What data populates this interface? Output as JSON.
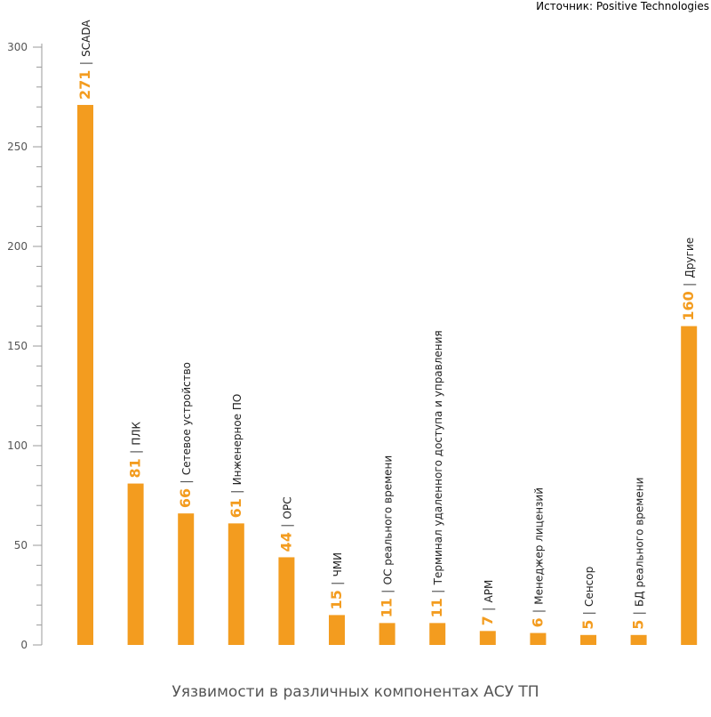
{
  "source_text": "Источник: Positive Technologies",
  "caption": "Уязвимости в различных компонентах АСУ ТП",
  "colors": {
    "bar": "#f39c1f",
    "axis": "#999999",
    "text": "#555555"
  },
  "chart_data": {
    "type": "bar",
    "title": "Уязвимости в различных компонентах АСУ ТП",
    "xlabel": "",
    "ylabel": "",
    "ylim": [
      0,
      300
    ],
    "yticks": [
      0,
      50,
      100,
      150,
      200,
      250,
      300
    ],
    "separator": "|",
    "grid": false,
    "categories": [
      "SCADA",
      "ПЛК",
      "Сетевое устройство",
      "Инженерное ПО",
      "OPC",
      "ЧМИ",
      "ОС реального времени",
      "Терминал удаленного доступа и управления",
      "АРМ",
      "Менеджер лицензий",
      "Сенсор",
      "БД реального времени",
      "Другие"
    ],
    "values": [
      271,
      81,
      66,
      61,
      44,
      15,
      11,
      11,
      7,
      6,
      5,
      5,
      160
    ]
  }
}
